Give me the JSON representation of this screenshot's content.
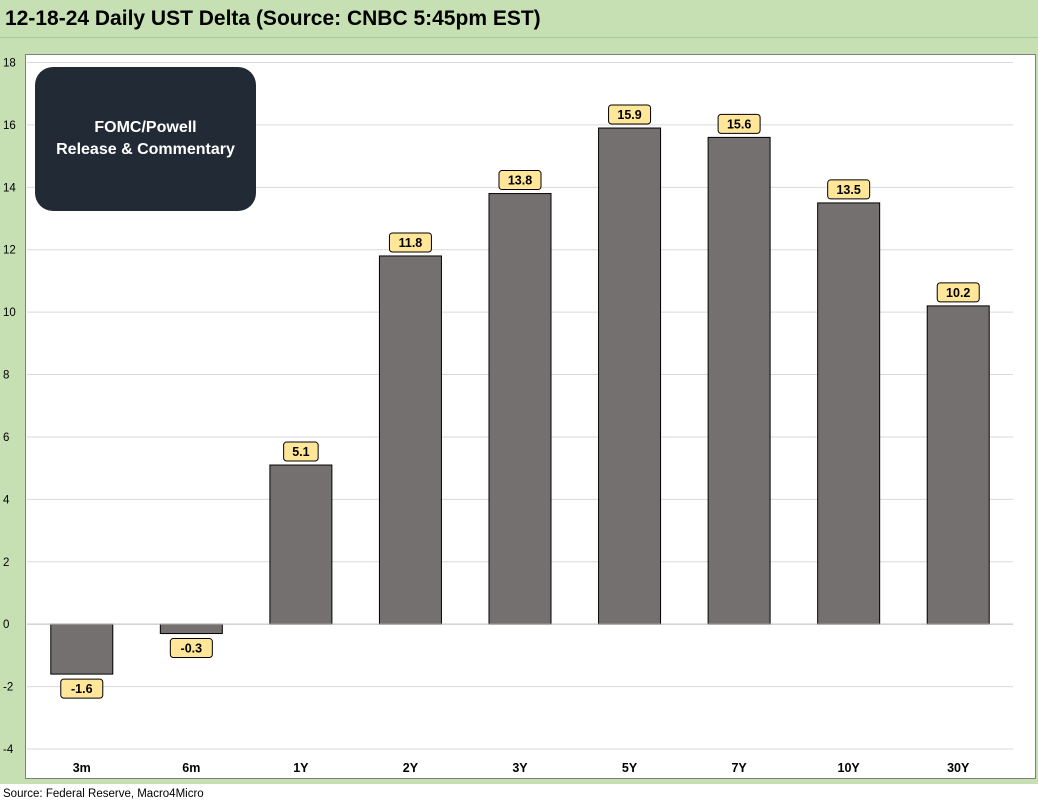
{
  "title": "12-18-24 Daily UST Delta (Source: CNBC 5:45pm EST)",
  "source": "Source: Federal Reserve, Macro4Micro",
  "annotation": {
    "line1": "FOMC/Powell",
    "line2": "Release & Commentary"
  },
  "colors": {
    "background_band": "#c6e0b4",
    "bar_fill": "#757070",
    "label_fill": "#ffe699",
    "annotation_fill": "#222a36"
  },
  "chart_data": {
    "type": "bar",
    "categories": [
      "3m",
      "6m",
      "1Y",
      "2Y",
      "3Y",
      "5Y",
      "7Y",
      "10Y",
      "30Y"
    ],
    "values": [
      -1.6,
      -0.3,
      5.1,
      11.8,
      13.8,
      15.9,
      15.6,
      13.5,
      10.2
    ],
    "data_labels": [
      "-1.6",
      "-0.3",
      "5.1",
      "11.8",
      "13.8",
      "15.9",
      "15.6",
      "13.5",
      "10.2"
    ],
    "ylim": [
      -4,
      18
    ],
    "yticks": [
      "-4",
      "-2",
      "0",
      "2",
      "4",
      "6",
      "8",
      "10",
      "12",
      "14",
      "16",
      "18"
    ],
    "grid": true,
    "title": "",
    "xlabel": "",
    "ylabel": ""
  }
}
